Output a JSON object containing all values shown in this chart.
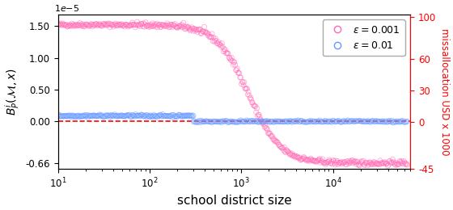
{
  "title": "",
  "xlabel": "school district size",
  "ylabel_left": "$B^i_P(\\mathcal{M}, x)$",
  "ylabel_right": "missallocation USD x 1000",
  "xlim": [
    10,
    70000
  ],
  "ylim_left": [
    -7.5e-06,
    1.68e-05
  ],
  "ylim_right": [
    -45,
    102
  ],
  "yticks_left": [
    -6.6e-06,
    0.0,
    5e-06,
    1e-05,
    1.5e-05
  ],
  "ytick_labels_left": [
    "-0.66",
    "0.00",
    "0.50",
    "1.00",
    "1.50"
  ],
  "yticks_right": [
    -45,
    0,
    30,
    60,
    100
  ],
  "color_pink": "#FF69B4",
  "color_blue": "#6699FF",
  "color_dashed": "red",
  "legend_eps1": "$\\varepsilon = 0.001$",
  "legend_eps2": "$\\varepsilon = 0.01$",
  "marker_size": 18,
  "alpha": 0.55
}
